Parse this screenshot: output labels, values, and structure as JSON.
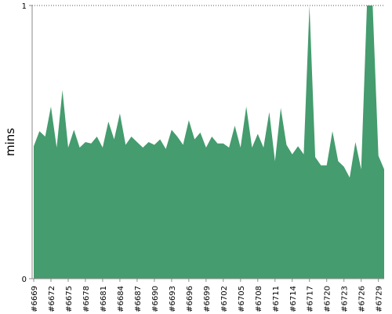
{
  "chart_data": {
    "type": "area",
    "title": "",
    "xlabel": "",
    "ylabel": "mins",
    "ylim": [
      0,
      1
    ],
    "y_ticks": [
      "0",
      "1"
    ],
    "grid": {
      "top_reference_line": true,
      "style": "dotted"
    },
    "colors": {
      "fill": "#459C6E",
      "axis": "#8a8a8a",
      "grid": "#555555"
    },
    "tick_labels": [
      "#6669",
      "#6672",
      "#6675",
      "#6678",
      "#6681",
      "#6684",
      "#6687",
      "#6690",
      "#6693",
      "#6696",
      "#6699",
      "#6702",
      "#6705",
      "#6708",
      "#6711",
      "#6714",
      "#6717",
      "#6720",
      "#6723",
      "#6726",
      "#6729"
    ],
    "x": [
      6669,
      6670,
      6671,
      6672,
      6673,
      6674,
      6675,
      6676,
      6677,
      6678,
      6679,
      6680,
      6681,
      6682,
      6683,
      6684,
      6685,
      6686,
      6687,
      6688,
      6689,
      6690,
      6691,
      6692,
      6693,
      6694,
      6695,
      6696,
      6697,
      6698,
      6699,
      6700,
      6701,
      6702,
      6703,
      6704,
      6705,
      6706,
      6707,
      6708,
      6709,
      6710,
      6711,
      6712,
      6713,
      6714,
      6715,
      6716,
      6717,
      6718,
      6719,
      6720,
      6721,
      6722,
      6723,
      6724,
      6725,
      6726,
      6727,
      6728,
      6729,
      6730
    ],
    "values": [
      0.485,
      0.54,
      0.52,
      0.63,
      0.48,
      0.69,
      0.48,
      0.545,
      0.48,
      0.5,
      0.495,
      0.52,
      0.48,
      0.575,
      0.51,
      0.605,
      0.49,
      0.52,
      0.5,
      0.48,
      0.5,
      0.49,
      0.51,
      0.475,
      0.545,
      0.52,
      0.49,
      0.58,
      0.51,
      0.535,
      0.48,
      0.52,
      0.495,
      0.495,
      0.48,
      0.56,
      0.48,
      0.63,
      0.48,
      0.53,
      0.48,
      0.61,
      0.43,
      0.625,
      0.49,
      0.455,
      0.485,
      0.455,
      1.0,
      0.445,
      0.415,
      0.415,
      0.54,
      0.43,
      0.41,
      0.37,
      0.5,
      0.4,
      1.0,
      1.0,
      0.45,
      0.4
    ]
  }
}
